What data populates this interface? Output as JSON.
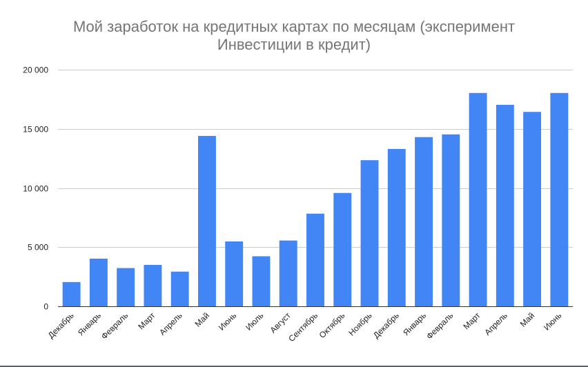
{
  "chart_data": {
    "type": "bar",
    "title_lines": [
      "Мой заработок на кредитных картах по месяцам (эксперимент",
      "Инвестиции в кредит)"
    ],
    "categories": [
      "Декабрь",
      "Январь",
      "Февраль",
      "Март",
      "Апрель",
      "Май",
      "Июнь",
      "Июль",
      "Август",
      "Сентябрь",
      "Октябрь",
      "Ноябрь",
      "Декабрь",
      "Январь",
      "Февраль",
      "Март",
      "Апрель",
      "Май",
      "Июнь"
    ],
    "values": [
      2050,
      4030,
      3230,
      3500,
      2930,
      14400,
      5480,
      4230,
      5560,
      7830,
      9580,
      12350,
      13300,
      14300,
      14530,
      18030,
      17030,
      16430,
      18030
    ],
    "ylim": [
      0,
      20000
    ],
    "yticks": [
      0,
      5000,
      10000,
      15000,
      20000
    ],
    "ytick_labels": [
      "0",
      "5 000",
      "10 000",
      "15 000",
      "20 000"
    ],
    "xlabel": "",
    "ylabel": "",
    "grid": true,
    "legend": "none",
    "bar_color": "#4285f4",
    "grid_color": "#cccccc",
    "baseline_color": "#333333"
  }
}
